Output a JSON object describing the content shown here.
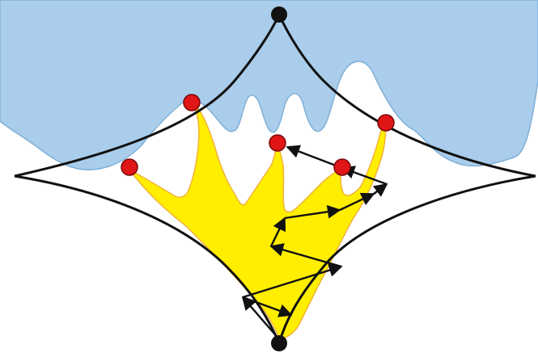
{
  "colors": {
    "background": "#ffffff",
    "water_fill": "#a9cdeb",
    "water_edge": "#7fb0d8",
    "tree_fill": "#ffee00",
    "tree_edge": "#f2b23a",
    "boundary_stroke": "#111111",
    "arrow_stroke": "#111111",
    "vertex_fill": "#111111",
    "tip_node_fill": "#e01515",
    "tip_node_edge": "#7a0a0a"
  },
  "diagram": {
    "text_labels": [],
    "vertex_count": 2,
    "tip_node_count": 5,
    "arrow_count": 10
  }
}
